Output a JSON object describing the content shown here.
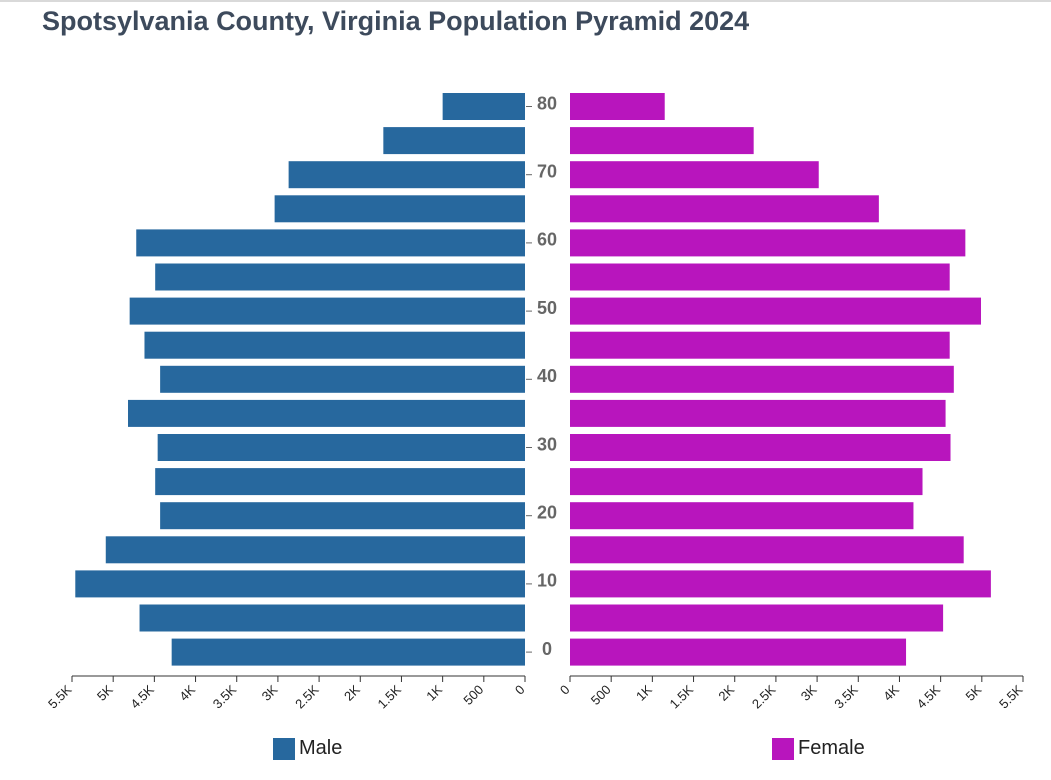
{
  "chart_data": {
    "type": "bar",
    "title": "Spotsylvania County, Virginia Population Pyramid 2024",
    "xlabel": "",
    "ylabel": "",
    "orientation": "horizontal-pyramid",
    "categories": [
      "0",
      "5",
      "10",
      "15",
      "20",
      "25",
      "30",
      "35",
      "40",
      "45",
      "50",
      "55",
      "60",
      "65",
      "70",
      "75",
      "80"
    ],
    "age_tick_labels": [
      "0",
      "10",
      "20",
      "30",
      "40",
      "50",
      "60",
      "70",
      "80"
    ],
    "xlim": [
      0,
      5500
    ],
    "male_tick_labels": [
      "5.5K",
      "5K",
      "4.5K",
      "4K",
      "3.5K",
      "3K",
      "2.5K",
      "2K",
      "1.5K",
      "1K",
      "500",
      "0"
    ],
    "female_tick_labels": [
      "0",
      "500",
      "1K",
      "1.5K",
      "2K",
      "2.5K",
      "3K",
      "3.5K",
      "4K",
      "4.5K",
      "5K",
      "5.5K"
    ],
    "series": [
      {
        "name": "Male",
        "color": "#27689e",
        "values": [
          4290,
          4680,
          5460,
          5090,
          4430,
          4490,
          4460,
          4820,
          4430,
          4620,
          4800,
          4490,
          4720,
          3040,
          2870,
          1720,
          1000
        ]
      },
      {
        "name": "Female",
        "color": "#b815bd",
        "values": [
          4080,
          4530,
          5110,
          4780,
          4170,
          4280,
          4620,
          4560,
          4660,
          4610,
          4990,
          4610,
          4800,
          3750,
          3020,
          2230,
          1150
        ]
      }
    ],
    "legend_position": "bottom",
    "grid": false
  }
}
